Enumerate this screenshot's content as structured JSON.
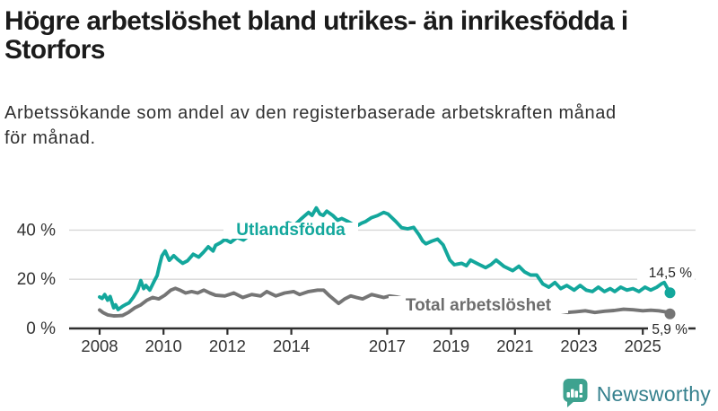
{
  "header": {
    "title": "Högre arbetslöshet bland utrikes- än inrikesfödda i Storfors",
    "title_lines": [
      "Högre arbetslöshet bland utrikes- än inrikesfödda i",
      "Storfors"
    ],
    "subtitle": "Arbetssökande som andel av den registerbaserade arbetskraften månad för månad.",
    "subtitle_lines": [
      "Arbetssökande som andel av den registerbaserade arbetskraften månad",
      "för månad."
    ]
  },
  "footer": {
    "brand": "Newsworthy",
    "logo_icon": "bar-chart-speech-bubble-icon",
    "icon_color": "#3ea28f",
    "text_color": "#35808d"
  },
  "chart_data": {
    "type": "line",
    "title": "Högre arbetslöshet bland utrikes- än inrikesfödda i Storfors",
    "subtitle": "Arbetssökande som andel av den registerbaserade arbetskraften månad för månad.",
    "unit": "%",
    "grid": "horizontal",
    "legend": "inline-labels",
    "x_axis": {
      "ticks": [
        2008,
        2010,
        2012,
        2014,
        2017,
        2019,
        2021,
        2023,
        2025
      ],
      "range": [
        2008,
        2025.9
      ]
    },
    "y_axis": {
      "ticks": [
        {
          "label": "0 %",
          "value": 0
        },
        {
          "label": "20 %",
          "value": 20
        },
        {
          "label": "40 %",
          "value": 40
        }
      ],
      "range": [
        0,
        50
      ]
    },
    "colors": {
      "grid": "#d7d7d7",
      "axis": "#2e2e2e",
      "text": "#333333",
      "background": "#ffffff"
    },
    "series": [
      {
        "id": "utlandsfodda",
        "name": "Utlandsfödda",
        "color": "#13a79c",
        "label_color": "#13a79c",
        "end_label": "14,5 %",
        "end_value": 14.5,
        "points": [
          [
            2008,
            12.8
          ],
          [
            2008.08,
            12.2
          ],
          [
            2008.16,
            13.8
          ],
          [
            2008.25,
            11.5
          ],
          [
            2008.33,
            13
          ],
          [
            2008.44,
            8.4
          ],
          [
            2008.5,
            9.6
          ],
          [
            2008.58,
            7.7
          ],
          [
            2008.72,
            9
          ],
          [
            2008.83,
            9.8
          ],
          [
            2008.92,
            10.4
          ],
          [
            2009.05,
            12.6
          ],
          [
            2009.19,
            15.6
          ],
          [
            2009.29,
            19.5
          ],
          [
            2009.38,
            16.2
          ],
          [
            2009.45,
            17.5
          ],
          [
            2009.57,
            15.6
          ],
          [
            2009.71,
            19.3
          ],
          [
            2009.8,
            21.5
          ],
          [
            2009.88,
            26
          ],
          [
            2009.95,
            29.5
          ],
          [
            2010.05,
            31.5
          ],
          [
            2010.18,
            27.7
          ],
          [
            2010.32,
            29.6
          ],
          [
            2010.45,
            28
          ],
          [
            2010.6,
            26.5
          ],
          [
            2010.75,
            27.5
          ],
          [
            2010.93,
            30.2
          ],
          [
            2011.1,
            29
          ],
          [
            2011.25,
            31
          ],
          [
            2011.4,
            33.2
          ],
          [
            2011.55,
            31.5
          ],
          [
            2011.63,
            33.8
          ],
          [
            2011.8,
            35
          ],
          [
            2011.92,
            36.2
          ],
          [
            2012.1,
            35
          ],
          [
            2012.3,
            37
          ],
          [
            2012.5,
            36
          ],
          [
            2012.7,
            38
          ],
          [
            2012.9,
            39.5
          ],
          [
            2013.1,
            38.5
          ],
          [
            2013.3,
            40.5
          ],
          [
            2013.5,
            39.5
          ],
          [
            2013.7,
            41.5
          ],
          [
            2013.9,
            43
          ],
          [
            2014.1,
            42
          ],
          [
            2014.3,
            44.5
          ],
          [
            2014.54,
            47.2
          ],
          [
            2014.65,
            46
          ],
          [
            2014.78,
            49
          ],
          [
            2014.9,
            46.5
          ],
          [
            2015,
            46
          ],
          [
            2015.11,
            47.7
          ],
          [
            2015.3,
            45.9
          ],
          [
            2015.45,
            44
          ],
          [
            2015.58,
            44.7
          ],
          [
            2015.77,
            43.5
          ],
          [
            2015.9,
            42.5
          ],
          [
            2016.05,
            41.7
          ],
          [
            2016.2,
            42.8
          ],
          [
            2016.33,
            43.5
          ],
          [
            2016.5,
            45
          ],
          [
            2016.7,
            45.9
          ],
          [
            2016.89,
            47.2
          ],
          [
            2017.03,
            46.5
          ],
          [
            2017.27,
            43.5
          ],
          [
            2017.45,
            41
          ],
          [
            2017.64,
            40.5
          ],
          [
            2017.83,
            41.1
          ],
          [
            2018,
            38
          ],
          [
            2018.11,
            35.6
          ],
          [
            2018.21,
            34.4
          ],
          [
            2018.4,
            35.5
          ],
          [
            2018.58,
            36.3
          ],
          [
            2018.75,
            34
          ],
          [
            2018.96,
            27.8
          ],
          [
            2019.1,
            25.9
          ],
          [
            2019.33,
            26.5
          ],
          [
            2019.48,
            25.5
          ],
          [
            2019.61,
            27.8
          ],
          [
            2019.8,
            26.5
          ],
          [
            2020.08,
            24.7
          ],
          [
            2020.25,
            26
          ],
          [
            2020.41,
            27.8
          ],
          [
            2020.65,
            25.3
          ],
          [
            2020.93,
            23.5
          ],
          [
            2021.12,
            25.3
          ],
          [
            2021.3,
            23
          ],
          [
            2021.49,
            21.7
          ],
          [
            2021.68,
            21.7
          ],
          [
            2021.87,
            18.1
          ],
          [
            2022.06,
            16.8
          ],
          [
            2022.25,
            18.7
          ],
          [
            2022.43,
            16.2
          ],
          [
            2022.62,
            17.5
          ],
          [
            2022.85,
            15.6
          ],
          [
            2023.04,
            17.5
          ],
          [
            2023.23,
            15.6
          ],
          [
            2023.42,
            15
          ],
          [
            2023.61,
            16.8
          ],
          [
            2023.8,
            15
          ],
          [
            2023.98,
            16.2
          ],
          [
            2024.12,
            15
          ],
          [
            2024.31,
            16.8
          ],
          [
            2024.5,
            15.6
          ],
          [
            2024.69,
            16.2
          ],
          [
            2024.88,
            15
          ],
          [
            2025.07,
            16.8
          ],
          [
            2025.25,
            15.6
          ],
          [
            2025.44,
            16.8
          ],
          [
            2025.58,
            18.1
          ],
          [
            2025.67,
            18.7
          ],
          [
            2025.85,
            14.5
          ]
        ]
      },
      {
        "id": "total-arbetsloshet",
        "name": "Total arbetslöshet",
        "color": "#757575",
        "label_color": "#6d6d6d",
        "end_label": "5,9 %",
        "end_value": 5.9,
        "points": [
          [
            2008,
            7.5
          ],
          [
            2008.1,
            6.5
          ],
          [
            2008.25,
            5.5
          ],
          [
            2008.44,
            5.1
          ],
          [
            2008.6,
            5.2
          ],
          [
            2008.72,
            5.3
          ],
          [
            2008.9,
            6.5
          ],
          [
            2009.1,
            8.4
          ],
          [
            2009.29,
            9.6
          ],
          [
            2009.47,
            11.4
          ],
          [
            2009.66,
            12.6
          ],
          [
            2009.85,
            12
          ],
          [
            2010.04,
            13.5
          ],
          [
            2010.23,
            15.6
          ],
          [
            2010.37,
            16.3
          ],
          [
            2010.51,
            15.6
          ],
          [
            2010.69,
            14.4
          ],
          [
            2010.88,
            15
          ],
          [
            2011.07,
            14.4
          ],
          [
            2011.26,
            15.6
          ],
          [
            2011.45,
            14.4
          ],
          [
            2011.63,
            13.5
          ],
          [
            2011.92,
            13.2
          ],
          [
            2012.2,
            14.4
          ],
          [
            2012.48,
            12.6
          ],
          [
            2012.76,
            13.8
          ],
          [
            2013.04,
            13.2
          ],
          [
            2013.23,
            15
          ],
          [
            2013.51,
            13.2
          ],
          [
            2013.79,
            14.4
          ],
          [
            2014.07,
            15
          ],
          [
            2014.26,
            13.8
          ],
          [
            2014.54,
            15
          ],
          [
            2014.82,
            15.6
          ],
          [
            2015.01,
            15.6
          ],
          [
            2015.2,
            13.2
          ],
          [
            2015.48,
            10.2
          ],
          [
            2015.67,
            12
          ],
          [
            2015.86,
            13.2
          ],
          [
            2016.04,
            12.6
          ],
          [
            2016.23,
            12
          ],
          [
            2016.51,
            13.8
          ],
          [
            2016.7,
            13.2
          ],
          [
            2016.89,
            12.6
          ],
          [
            2017.08,
            13.2
          ],
          [
            2017.3,
            12.8
          ],
          [
            2017.6,
            12
          ],
          [
            2018,
            11.3
          ],
          [
            2018.5,
            10.8
          ],
          [
            2019,
            10
          ],
          [
            2019.5,
            9.4
          ],
          [
            2020,
            9
          ],
          [
            2020.4,
            9.6
          ],
          [
            2020.8,
            9
          ],
          [
            2021.2,
            8.4
          ],
          [
            2021.6,
            7.9
          ],
          [
            2022,
            7.5
          ],
          [
            2022.4,
            7
          ],
          [
            2022.65,
            6.5
          ],
          [
            2022.9,
            6.8
          ],
          [
            2023.2,
            7.2
          ],
          [
            2023.5,
            6.5
          ],
          [
            2023.8,
            7
          ],
          [
            2024.1,
            7.3
          ],
          [
            2024.4,
            7.8
          ],
          [
            2024.7,
            7.6
          ],
          [
            2025,
            7.2
          ],
          [
            2025.25,
            7.4
          ],
          [
            2025.5,
            7.2
          ],
          [
            2025.7,
            6.8
          ],
          [
            2025.85,
            5.9
          ]
        ]
      }
    ]
  }
}
